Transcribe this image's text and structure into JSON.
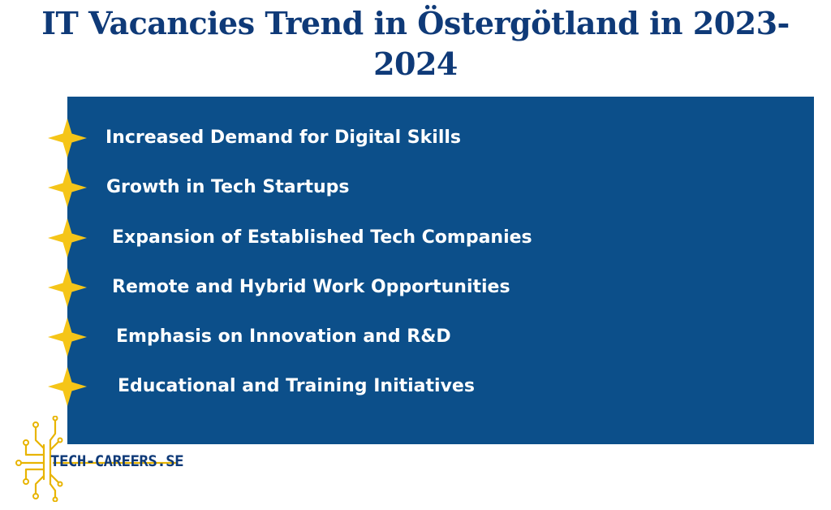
{
  "title": "IT Vacancies Trend in Östergötland in 2023-2024",
  "items": [
    {
      "label": "Increased Demand for Digital Skills",
      "icon": "star-icon"
    },
    {
      "label": "Growth in Tech Startups",
      "icon": "star-icon"
    },
    {
      "label": "Expansion of Established Tech Companies",
      "icon": "star-icon"
    },
    {
      "label": "Remote and Hybrid Work Opportunities",
      "icon": "star-icon"
    },
    {
      "label": "Emphasis on Innovation and R&D",
      "icon": "star-icon"
    },
    {
      "label": "Educational and Training Initiatives",
      "icon": "star-icon"
    }
  ],
  "brand": {
    "name": "TECH-CAREERS.SE",
    "logo_icon": "circuit-logo-icon"
  },
  "colors": {
    "title": "#0f3a78",
    "panel": "#0c4f8a",
    "star": "#f5c518",
    "logo_circuit": "#e8b400",
    "text_on_panel": "#ffffff"
  }
}
